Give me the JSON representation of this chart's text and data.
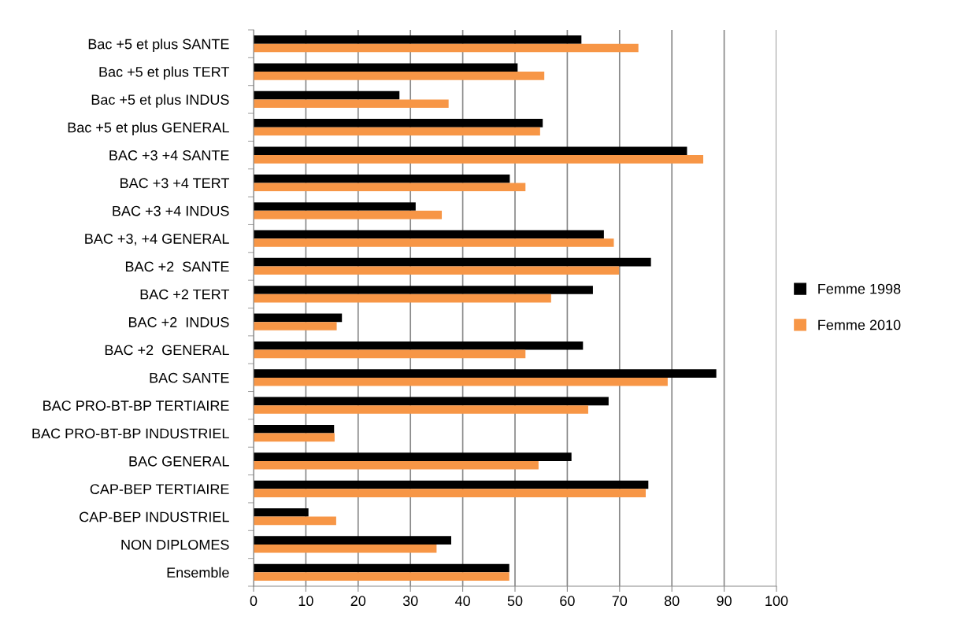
{
  "chart_data": {
    "type": "bar",
    "orientation": "horizontal",
    "categories": [
      "Bac +5 et plus SANTE",
      "Bac +5 et plus TERT",
      "Bac +5 et plus INDUS",
      "Bac +5 et plus GENERAL",
      "BAC +3 +4 SANTE",
      "BAC +3 +4 TERT",
      "BAC +3 +4 INDUS",
      "BAC +3, +4 GENERAL",
      "BAC +2  SANTE",
      "BAC +2 TERT",
      "BAC +2  INDUS",
      "BAC +2  GENERAL",
      "BAC SANTE",
      "BAC PRO-BT-BP TERTIAIRE",
      "BAC PRO-BT-BP INDUSTRIEL",
      "BAC GENERAL",
      "CAP-BEP TERTIAIRE",
      "CAP-BEP INDUSTRIEL",
      "NON DIPLOMES",
      "Ensemble"
    ],
    "series": [
      {
        "name": "Femme 1998",
        "color": "#000000",
        "values": [
          62.7,
          50.5,
          27.9,
          55.3,
          82.9,
          49.0,
          31.0,
          67.0,
          76.0,
          64.9,
          16.9,
          63.0,
          88.5,
          67.9,
          15.4,
          60.8,
          75.5,
          10.5,
          37.8,
          48.9
        ]
      },
      {
        "name": "Femme 2010",
        "color": "#f79646",
        "values": [
          73.6,
          55.6,
          37.3,
          54.8,
          86.0,
          52.0,
          36.0,
          68.9,
          69.9,
          56.9,
          15.9,
          52.0,
          79.2,
          64.0,
          15.5,
          54.5,
          75.0,
          15.8,
          35.0,
          48.9
        ]
      }
    ],
    "xlim": [
      0,
      100
    ],
    "xticks": [
      0,
      10,
      20,
      30,
      40,
      50,
      60,
      70,
      80,
      90,
      100
    ],
    "grid": "x",
    "legend": "right"
  }
}
